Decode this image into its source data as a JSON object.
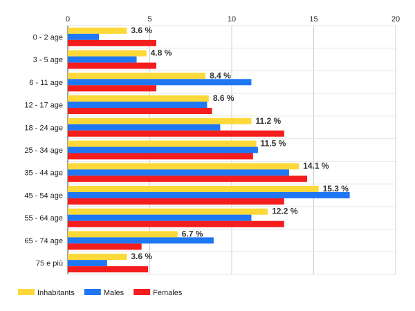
{
  "chart_data": {
    "type": "bar",
    "orientation": "horizontal",
    "categories": [
      "0 - 2 age",
      "3 - 5 age",
      "6 - 11 age",
      "12 - 17 age",
      "18 - 24 age",
      "25 - 34 age",
      "35 - 44 age",
      "45 - 54 age",
      "55 - 64 age",
      "65 - 74 age",
      "75 e più"
    ],
    "series": [
      {
        "name": "Inhabitants",
        "color": "#fcd939",
        "values": [
          3.6,
          4.8,
          8.4,
          8.6,
          11.2,
          11.5,
          14.1,
          15.3,
          12.2,
          6.7,
          3.6
        ]
      },
      {
        "name": "Males",
        "color": "#1f77f4",
        "values": [
          1.9,
          4.2,
          11.2,
          8.5,
          9.3,
          11.6,
          13.5,
          17.2,
          11.2,
          8.9,
          2.4
        ]
      },
      {
        "name": "Females",
        "color": "#f41d1d",
        "values": [
          5.4,
          5.4,
          5.4,
          8.8,
          13.2,
          11.3,
          14.6,
          13.2,
          13.2,
          4.5,
          4.9
        ]
      }
    ],
    "data_labels": [
      "3.6 %",
      "4.8 %",
      "8.4 %",
      "8.6 %",
      "11.2 %",
      "11.5 %",
      "14.1 %",
      "15.3 %",
      "12.2 %",
      "6.7 %",
      "3.6 %"
    ],
    "xticks": [
      0,
      5,
      10,
      15,
      20
    ],
    "xlim": [
      0,
      20
    ],
    "grid": true,
    "legend_position": "bottom-left",
    "title": "",
    "xlabel": "",
    "ylabel": ""
  }
}
